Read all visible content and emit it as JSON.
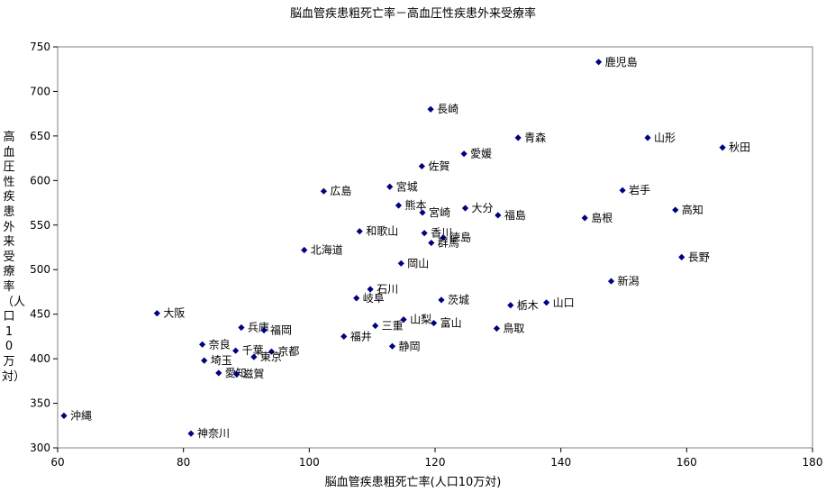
{
  "chart_data": {
    "type": "scatter",
    "title": "脳血管疾患粗死亡率－高血圧性疾患外来受療率",
    "xlabel": "脳血管疾患粗死亡率(人口10万対)",
    "ylabel": "高血圧性疾患外来受療率（人口10万対）",
    "xlim": [
      60,
      180
    ],
    "ylim": [
      300,
      750
    ],
    "xticks": [
      60,
      80,
      100,
      120,
      140,
      160,
      180
    ],
    "yticks": [
      300,
      350,
      400,
      450,
      500,
      550,
      600,
      650,
      700,
      750
    ],
    "grid": false,
    "marker_color": "#000080",
    "points": [
      {
        "label": "鹿児島",
        "x": 146.0,
        "y": 733
      },
      {
        "label": "長崎",
        "x": 119.3,
        "y": 680
      },
      {
        "label": "青森",
        "x": 133.2,
        "y": 648
      },
      {
        "label": "山形",
        "x": 153.8,
        "y": 648
      },
      {
        "label": "秋田",
        "x": 165.7,
        "y": 637
      },
      {
        "label": "愛媛",
        "x": 124.6,
        "y": 630
      },
      {
        "label": "佐賀",
        "x": 117.9,
        "y": 616
      },
      {
        "label": "宮城",
        "x": 112.8,
        "y": 593
      },
      {
        "label": "岩手",
        "x": 149.8,
        "y": 589
      },
      {
        "label": "広島",
        "x": 102.3,
        "y": 588
      },
      {
        "label": "熊本",
        "x": 114.2,
        "y": 572
      },
      {
        "label": "大分",
        "x": 124.8,
        "y": 569
      },
      {
        "label": "高知",
        "x": 158.2,
        "y": 567
      },
      {
        "label": "宮崎",
        "x": 118.0,
        "y": 564
      },
      {
        "label": "福島",
        "x": 130.0,
        "y": 561
      },
      {
        "label": "島根",
        "x": 143.8,
        "y": 558
      },
      {
        "label": "和歌山",
        "x": 108.0,
        "y": 543
      },
      {
        "label": "香川",
        "x": 118.3,
        "y": 541
      },
      {
        "label": "徳島",
        "x": 121.3,
        "y": 536
      },
      {
        "label": "群馬",
        "x": 119.4,
        "y": 530
      },
      {
        "label": "北海道",
        "x": 99.2,
        "y": 522
      },
      {
        "label": "長野",
        "x": 159.2,
        "y": 514
      },
      {
        "label": "岡山",
        "x": 114.6,
        "y": 507
      },
      {
        "label": "新潟",
        "x": 148.0,
        "y": 487
      },
      {
        "label": "石川",
        "x": 109.7,
        "y": 478
      },
      {
        "label": "岐阜",
        "x": 107.5,
        "y": 468
      },
      {
        "label": "茨城",
        "x": 121.0,
        "y": 466
      },
      {
        "label": "山口",
        "x": 137.7,
        "y": 463
      },
      {
        "label": "栃木",
        "x": 132.0,
        "y": 460
      },
      {
        "label": "大阪",
        "x": 75.8,
        "y": 451
      },
      {
        "label": "山梨",
        "x": 115.0,
        "y": 444
      },
      {
        "label": "富山",
        "x": 119.8,
        "y": 440
      },
      {
        "label": "三重",
        "x": 110.5,
        "y": 437
      },
      {
        "label": "鳥取",
        "x": 129.8,
        "y": 434
      },
      {
        "label": "兵庫",
        "x": 89.2,
        "y": 435
      },
      {
        "label": "福岡",
        "x": 92.8,
        "y": 432
      },
      {
        "label": "福井",
        "x": 105.5,
        "y": 425
      },
      {
        "label": "奈良",
        "x": 83.0,
        "y": 416
      },
      {
        "label": "静岡",
        "x": 113.2,
        "y": 414
      },
      {
        "label": "千葉",
        "x": 88.3,
        "y": 409
      },
      {
        "label": "京都",
        "x": 94.0,
        "y": 408
      },
      {
        "label": "東京",
        "x": 91.2,
        "y": 402
      },
      {
        "label": "埼玉",
        "x": 83.3,
        "y": 398
      },
      {
        "label": "愛知",
        "x": 85.6,
        "y": 384
      },
      {
        "label": "滋賀",
        "x": 88.4,
        "y": 383
      },
      {
        "label": "沖縄",
        "x": 61.0,
        "y": 336
      },
      {
        "label": "神奈川",
        "x": 81.2,
        "y": 316
      }
    ]
  }
}
